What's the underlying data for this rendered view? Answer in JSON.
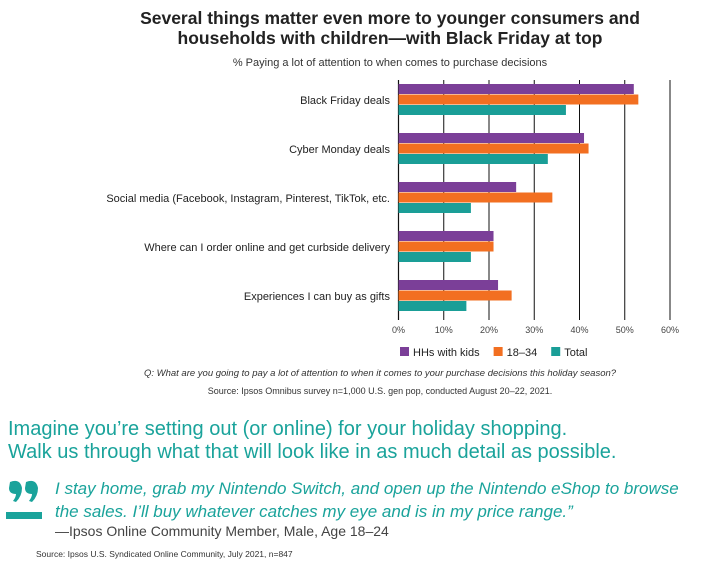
{
  "chart_data": {
    "type": "bar",
    "orientation": "horizontal",
    "title": "Several things matter even more to younger consumers and households with children—with Black Friday at top",
    "subtitle": "% Paying a lot of attention to when comes to purchase decisions",
    "categories": [
      "Black Friday deals",
      "Cyber Monday deals",
      "Social media (Facebook, Instagram, Pinterest, TikTok, etc.",
      "Where can I order online and get curbside delivery",
      "Experiences I can buy as gifts"
    ],
    "series": [
      {
        "name": "HHs with kids",
        "color": "#7b3f98",
        "values": [
          52,
          41,
          26,
          21,
          22
        ]
      },
      {
        "name": "18–34",
        "color": "#f26f21",
        "values": [
          53,
          42,
          34,
          21,
          25
        ]
      },
      {
        "name": "Total",
        "color": "#1a9e97",
        "values": [
          37,
          33,
          16,
          16,
          15
        ]
      }
    ],
    "xlim": [
      0,
      60
    ],
    "xticks": [
      "0%",
      "10%",
      "20%",
      "30%",
      "40%",
      "50%",
      "60%"
    ],
    "grid": true,
    "legend_position": "bottom"
  },
  "notes": {
    "question": "Q: What are you going to pay a lot of attention to when it comes to your purchase decisions this holiday season?",
    "source": "Source: Ipsos Omnibus survey n=1,000 U.S. gen pop, conducted August 20–22, 2021."
  },
  "prompt": {
    "line1": "Imagine you’re setting out (or online) for your holiday shopping.",
    "line2": "Walk us through what that will look like in as much detail as possible."
  },
  "quote": {
    "line1": "I stay home, grab my Nintendo Switch, and open up the Nintendo eShop to browse",
    "line2": "the sales. I’ll buy whatever catches my eye and is in my price range.”",
    "attribution": "—Ipsos Online Community Member, Male, Age 18–24",
    "source": "Source: Ipsos U.S. Syndicated Online Community, July 2021, n=847",
    "icon": "quote-mark-icon",
    "color": "#1aa39b"
  }
}
